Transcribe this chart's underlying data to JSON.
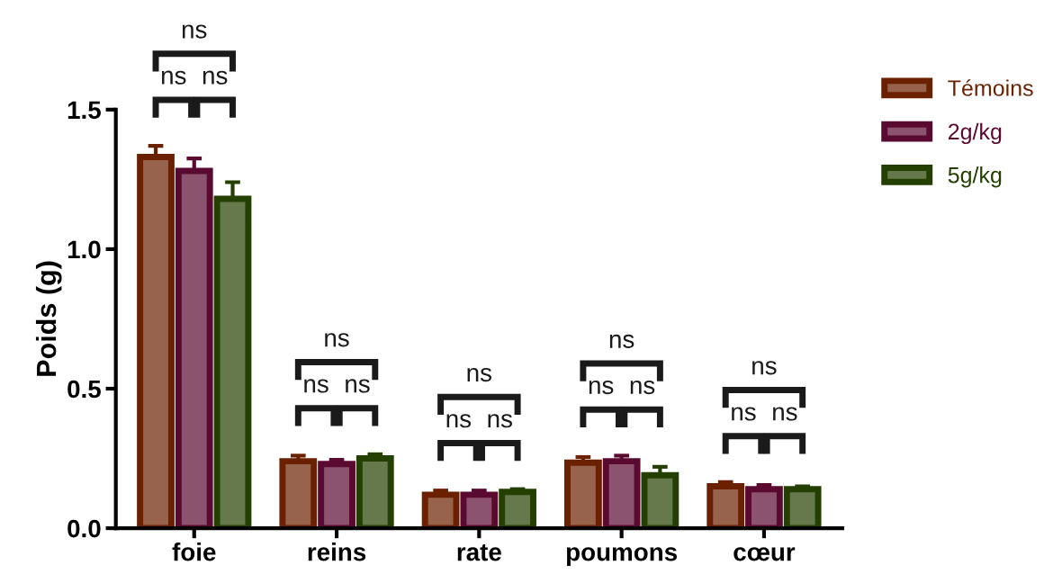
{
  "chart_data": {
    "type": "bar",
    "ylabel": "Poids (g)",
    "categories": [
      "foie",
      "reins",
      "rate",
      "poumons",
      "cœur"
    ],
    "series": [
      {
        "name": "Témoins",
        "color": "#6b2000",
        "values": [
          1.33,
          0.24,
          0.12,
          0.235,
          0.15
        ],
        "errors": [
          0.04,
          0.02,
          0.015,
          0.02,
          0.015
        ]
      },
      {
        "name": "2g/kg",
        "color": "#5a0a30",
        "values": [
          1.28,
          0.23,
          0.12,
          0.24,
          0.14
        ],
        "errors": [
          0.045,
          0.015,
          0.015,
          0.02,
          0.015
        ]
      },
      {
        "name": "5g/kg",
        "color": "#244000",
        "values": [
          1.18,
          0.25,
          0.13,
          0.19,
          0.14
        ],
        "errors": [
          0.06,
          0.015,
          0.01,
          0.03,
          0.01
        ]
      }
    ],
    "ylim": [
      0,
      1.5
    ],
    "yticks": [
      {
        "value": 0,
        "label": "0.0"
      },
      {
        "value": 0.5,
        "label": "0.5"
      },
      {
        "value": 1,
        "label": "1.0"
      },
      {
        "value": 1.5,
        "label": "1.5"
      }
    ],
    "grid": false,
    "legend": "top right",
    "annotations": [
      "ns",
      "ns",
      "ns",
      "ns",
      "ns",
      "ns",
      "ns",
      "ns",
      "ns",
      "ns",
      "ns",
      "ns",
      "ns",
      "ns",
      "ns"
    ]
  }
}
